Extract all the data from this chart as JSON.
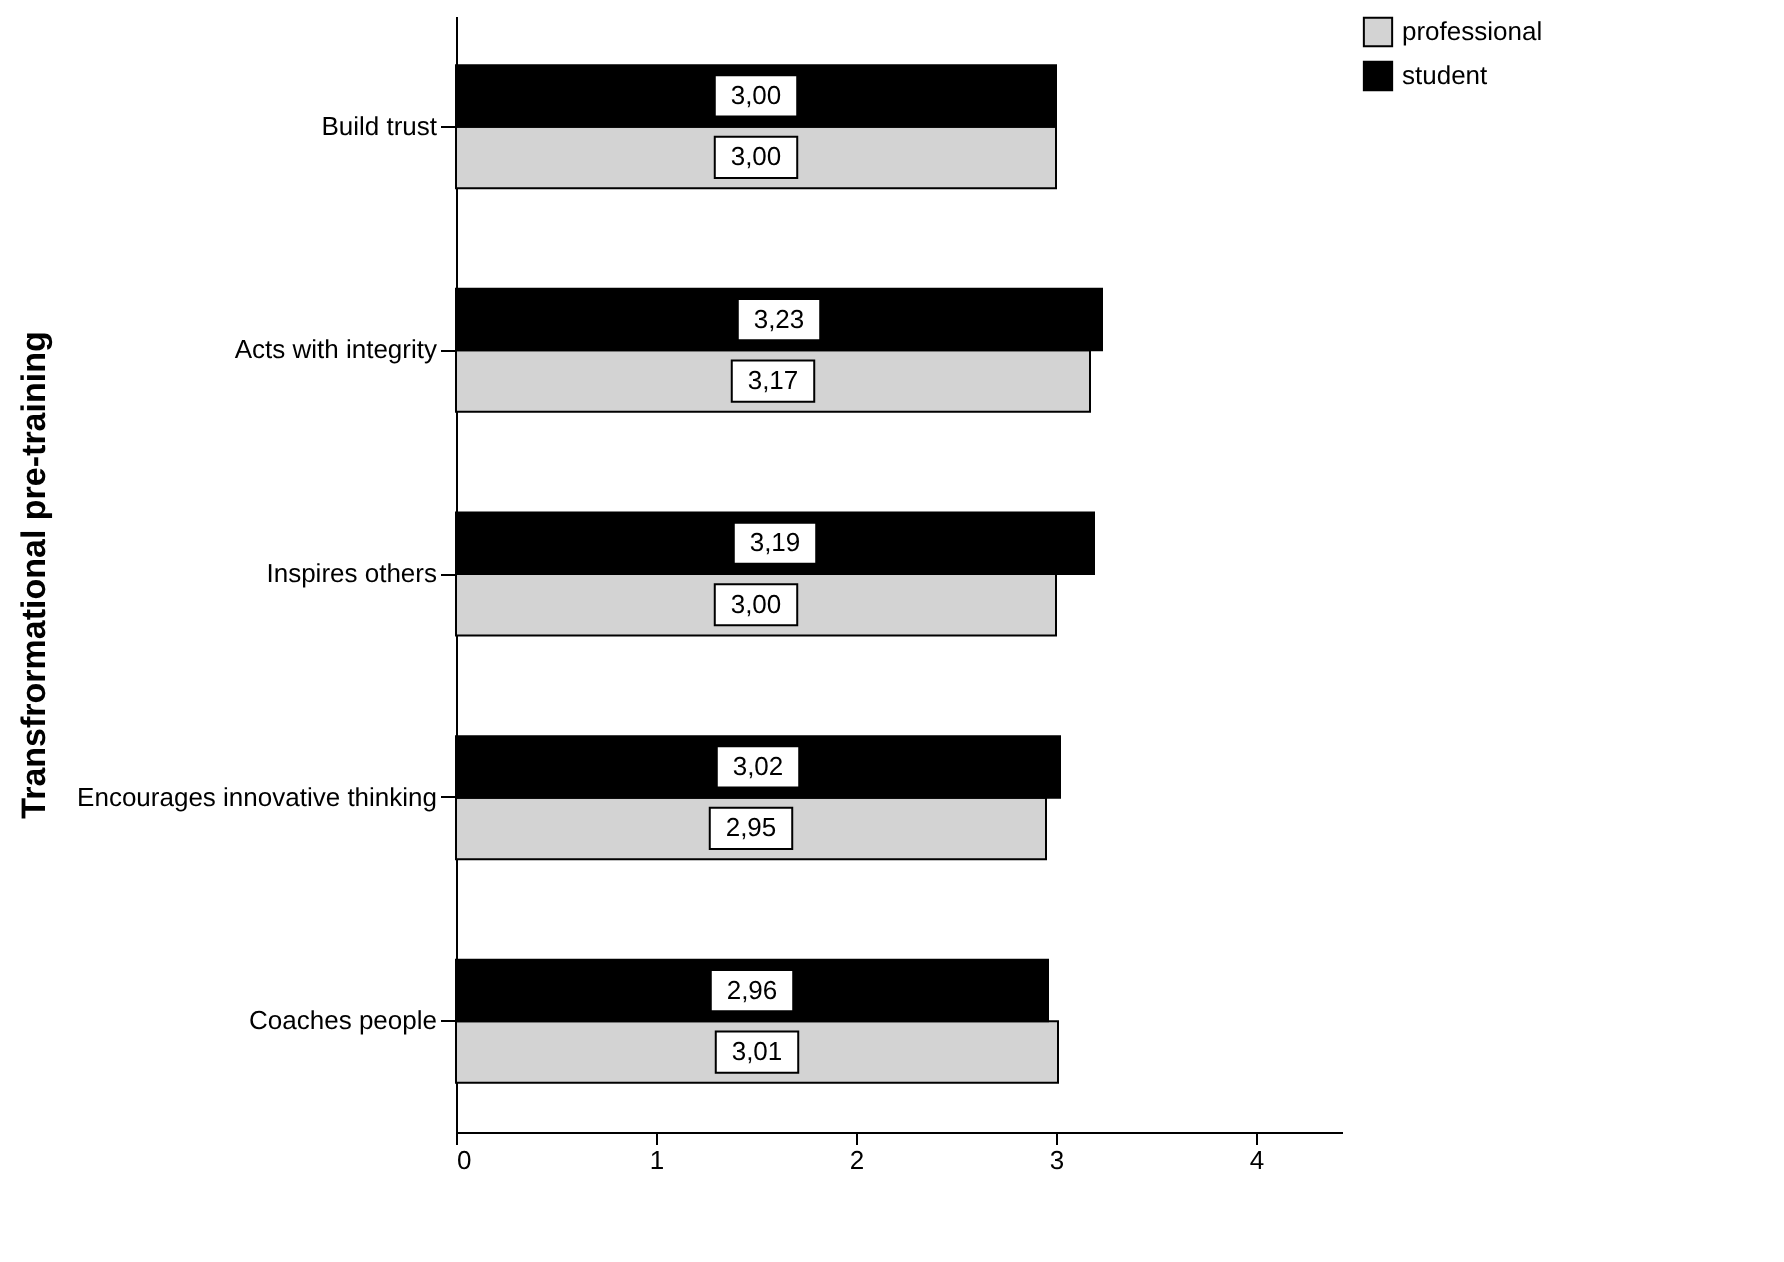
{
  "chart_data": {
    "type": "bar",
    "orientation": "horizontal",
    "ylabel": "Transfrormational pre-training",
    "categories": [
      "Build trust",
      "Acts with integrity",
      "Inspires others",
      "Encourages innovative thinking",
      "Coaches people"
    ],
    "series": [
      {
        "name": "professional",
        "color": "#d3d3d3",
        "values": [
          3.0,
          3.17,
          3.0,
          2.95,
          3.01
        ],
        "value_labels": [
          "3,00",
          "3,17",
          "3,00",
          "2,95",
          "3,01"
        ]
      },
      {
        "name": "student",
        "color": "#000000",
        "values": [
          3.0,
          3.23,
          3.19,
          3.02,
          2.96
        ],
        "value_labels": [
          "3,00",
          "3,23",
          "3,19",
          "3,02",
          "2,96"
        ]
      }
    ],
    "xlim": [
      0,
      4.43
    ],
    "xticks": [
      0,
      1,
      2,
      3,
      4
    ],
    "grid": false,
    "legend": "top right"
  }
}
